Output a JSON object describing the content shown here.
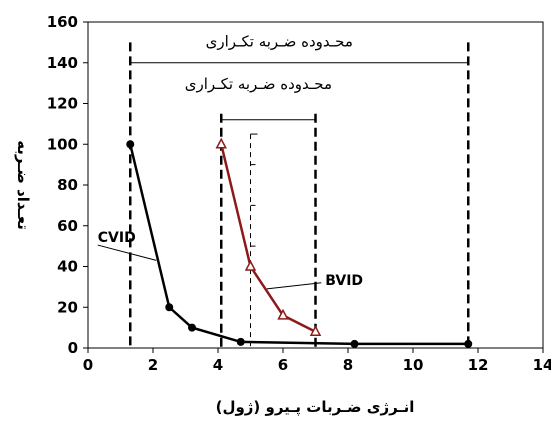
{
  "colors": {
    "cvid": "#000000",
    "bvid": "#8b1a1a",
    "plot_border": "#000000",
    "background": "#ffffff"
  },
  "chart_data": {
    "type": "line",
    "title": "",
    "xlabel": "انـرژی ضـربات پـیرو (ژول)",
    "ylabel": "تعـداد ضـربه",
    "xlim": [
      0,
      14
    ],
    "ylim": [
      0,
      160
    ],
    "xticks": [
      0,
      2,
      4,
      6,
      8,
      10,
      12,
      14
    ],
    "yticks": [
      0,
      20,
      40,
      60,
      80,
      100,
      120,
      140,
      160
    ],
    "grid": false,
    "legend": "none",
    "series": [
      {
        "name": "CVID",
        "color": "#000000",
        "marker": "circle",
        "x": [
          1.3,
          2.5,
          3.2,
          4.7,
          8.2,
          11.7
        ],
        "y": [
          100,
          20,
          10,
          3,
          2,
          2
        ]
      },
      {
        "name": "BVID",
        "color": "#8b1a1a",
        "marker": "triangle",
        "x": [
          4.1,
          5.0,
          6.0,
          7.0
        ],
        "y": [
          100,
          40,
          16,
          8
        ]
      }
    ],
    "annotations": {
      "wide_range": {
        "label": "محـدوده ضـربه تکـراری",
        "x_start": 1.3,
        "x_end": 11.7,
        "bracket_y": 140,
        "label_y": 148,
        "line_top_y": 150
      },
      "narrow_range": {
        "label": "محـدوده ضـربه تکـراری",
        "x_start": 4.1,
        "x_end": 7.0,
        "bracket_y": 112,
        "label_y": 127
      },
      "bvid_guide": {
        "x": 5.0,
        "y_top": 105,
        "y_bottom": 40
      },
      "cvid_callout": {
        "text": "CVID",
        "text_x": 0.3,
        "text_y": 52,
        "point_x": 2.1,
        "point_y": 43
      },
      "bvid_callout": {
        "text": "BVID",
        "text_x": 7.3,
        "text_y": 31,
        "point_x": 5.5,
        "point_y": 29
      }
    }
  }
}
